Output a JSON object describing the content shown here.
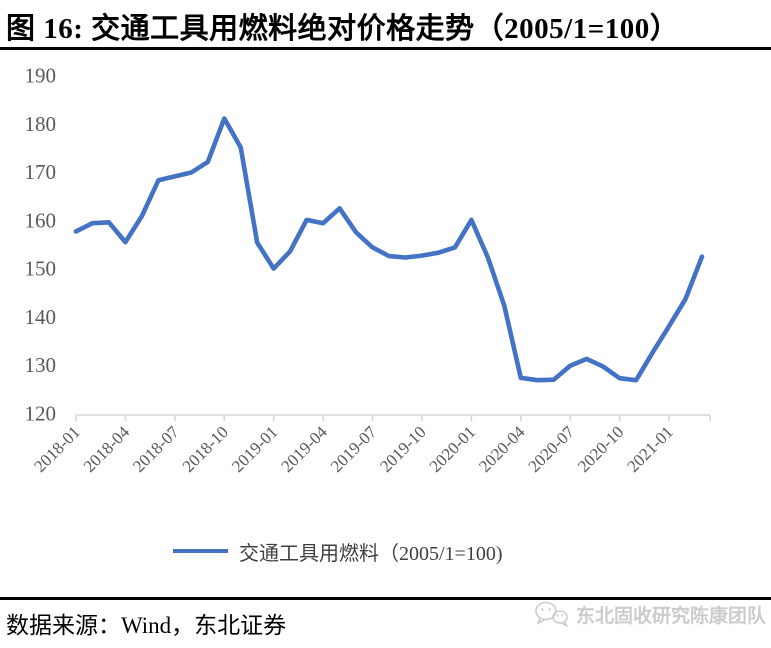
{
  "title": "图  16: 交通工具用燃料绝对价格走势（2005/1=100）",
  "source_note": "数据来源：Wind，东北证券",
  "watermark": {
    "icon": "wechat-icon",
    "text": "东北固收研究陈康团队"
  },
  "legend_label": "交通工具用燃料（2005/1=100)",
  "chart_data": {
    "type": "line",
    "title": "交通工具用燃料绝对价格走势（2005/1=100）",
    "xlabel": "",
    "ylabel": "",
    "ylim": [
      120,
      190
    ],
    "yticks": [
      190,
      180,
      170,
      160,
      150,
      140,
      130,
      120
    ],
    "grid": false,
    "legend_position": "bottom",
    "line_color": "#4472C4",
    "axis_color": "#d6d6d6",
    "tick_label_color": "#595959",
    "x_tick_labels": [
      "2018-01",
      "2018-04",
      "2018-07",
      "2018-10",
      "2019-01",
      "2019-04",
      "2019-07",
      "2019-10",
      "2020-01",
      "2020-04",
      "2020-07",
      "2020-10",
      "2021-01"
    ],
    "x": [
      "2018-01",
      "2018-02",
      "2018-03",
      "2018-04",
      "2018-05",
      "2018-06",
      "2018-07",
      "2018-08",
      "2018-09",
      "2018-10",
      "2018-11",
      "2018-12",
      "2019-01",
      "2019-02",
      "2019-03",
      "2019-04",
      "2019-05",
      "2019-06",
      "2019-07",
      "2019-08",
      "2019-09",
      "2019-10",
      "2019-11",
      "2019-12",
      "2020-01",
      "2020-02",
      "2020-03",
      "2020-04",
      "2020-05",
      "2020-06",
      "2020-07",
      "2020-08",
      "2020-09",
      "2020-10",
      "2020-11",
      "2020-12",
      "2021-01",
      "2021-02",
      "2021-03"
    ],
    "series": [
      {
        "name": "交通工具用燃料（2005/1=100)",
        "values": [
          157.6,
          159.3,
          159.5,
          155.4,
          160.8,
          168.2,
          169.0,
          169.8,
          172.0,
          181.0,
          175.0,
          155.3,
          149.9,
          153.5,
          160.0,
          159.3,
          162.4,
          157.4,
          154.3,
          152.5,
          152.2,
          152.6,
          153.2,
          154.3,
          160.0,
          152.2,
          142.2,
          127.3,
          126.8,
          126.9,
          129.8,
          131.2,
          129.6,
          127.2,
          126.8,
          132.5,
          138.0,
          143.6,
          152.4
        ]
      }
    ]
  }
}
